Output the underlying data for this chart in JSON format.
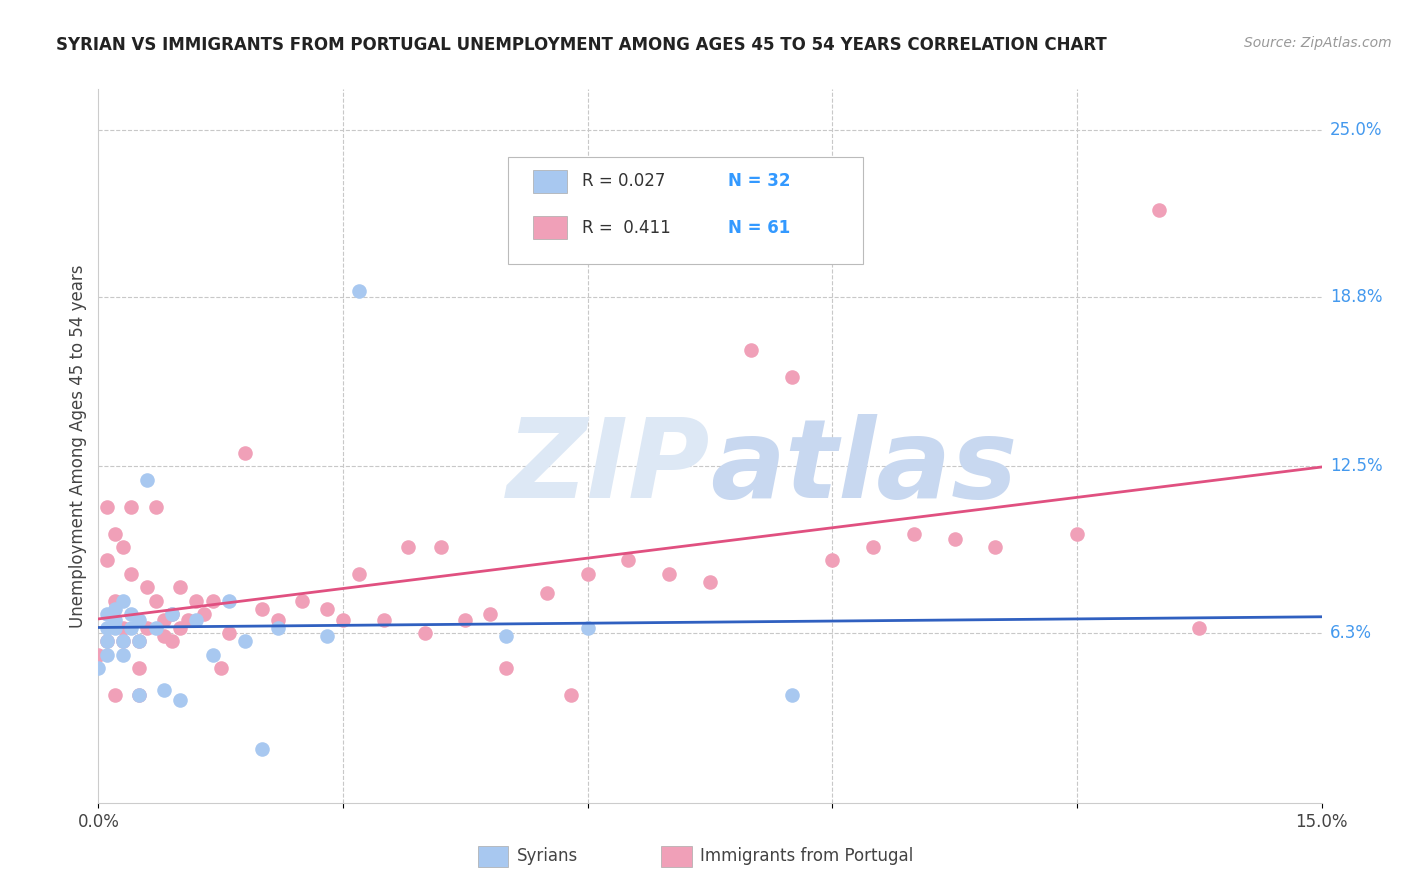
{
  "title": "SYRIAN VS IMMIGRANTS FROM PORTUGAL UNEMPLOYMENT AMONG AGES 45 TO 54 YEARS CORRELATION CHART",
  "source": "Source: ZipAtlas.com",
  "ylabel": "Unemployment Among Ages 45 to 54 years",
  "xlim": [
    0.0,
    0.15
  ],
  "ylim": [
    0.0,
    0.265
  ],
  "ytick_right_labels": [
    "25.0%",
    "18.8%",
    "12.5%",
    "6.3%"
  ],
  "ytick_right_values": [
    0.25,
    0.188,
    0.125,
    0.063
  ],
  "syrians_color": "#a8c8f0",
  "portugal_color": "#f0a0b8",
  "syrians_line_color": "#3060c0",
  "portugal_line_color": "#e05080",
  "background_color": "#ffffff",
  "grid_color": "#c8c8c8",
  "legend_R1": "R = 0.027",
  "legend_N1": "N = 32",
  "legend_R2": "R =  0.411",
  "legend_N2": "N = 61",
  "syrians_x": [
    0.0,
    0.001,
    0.001,
    0.001,
    0.001,
    0.002,
    0.002,
    0.002,
    0.003,
    0.003,
    0.003,
    0.004,
    0.004,
    0.005,
    0.005,
    0.005,
    0.006,
    0.007,
    0.008,
    0.009,
    0.01,
    0.012,
    0.014,
    0.016,
    0.018,
    0.02,
    0.022,
    0.028,
    0.032,
    0.05,
    0.06,
    0.085
  ],
  "syrians_y": [
    0.05,
    0.06,
    0.065,
    0.07,
    0.055,
    0.068,
    0.065,
    0.072,
    0.06,
    0.055,
    0.075,
    0.07,
    0.065,
    0.068,
    0.06,
    0.04,
    0.12,
    0.065,
    0.042,
    0.07,
    0.038,
    0.068,
    0.055,
    0.075,
    0.06,
    0.02,
    0.065,
    0.062,
    0.19,
    0.062,
    0.065,
    0.04
  ],
  "portugal_x": [
    0.0,
    0.001,
    0.001,
    0.001,
    0.002,
    0.002,
    0.002,
    0.003,
    0.003,
    0.003,
    0.004,
    0.004,
    0.005,
    0.005,
    0.005,
    0.006,
    0.006,
    0.007,
    0.007,
    0.008,
    0.008,
    0.009,
    0.009,
    0.01,
    0.01,
    0.011,
    0.012,
    0.013,
    0.014,
    0.015,
    0.016,
    0.018,
    0.02,
    0.022,
    0.025,
    0.028,
    0.03,
    0.032,
    0.035,
    0.038,
    0.04,
    0.042,
    0.045,
    0.048,
    0.05,
    0.055,
    0.058,
    0.06,
    0.065,
    0.07,
    0.075,
    0.08,
    0.085,
    0.09,
    0.095,
    0.1,
    0.105,
    0.11,
    0.12,
    0.13,
    0.135
  ],
  "portugal_y": [
    0.055,
    0.06,
    0.09,
    0.11,
    0.04,
    0.075,
    0.1,
    0.06,
    0.095,
    0.065,
    0.085,
    0.11,
    0.05,
    0.06,
    0.04,
    0.065,
    0.08,
    0.075,
    0.11,
    0.062,
    0.068,
    0.06,
    0.07,
    0.065,
    0.08,
    0.068,
    0.075,
    0.07,
    0.075,
    0.05,
    0.063,
    0.13,
    0.072,
    0.068,
    0.075,
    0.072,
    0.068,
    0.085,
    0.068,
    0.095,
    0.063,
    0.095,
    0.068,
    0.07,
    0.05,
    0.078,
    0.04,
    0.085,
    0.09,
    0.085,
    0.082,
    0.168,
    0.158,
    0.09,
    0.095,
    0.1,
    0.098,
    0.095,
    0.1,
    0.22,
    0.065
  ]
}
